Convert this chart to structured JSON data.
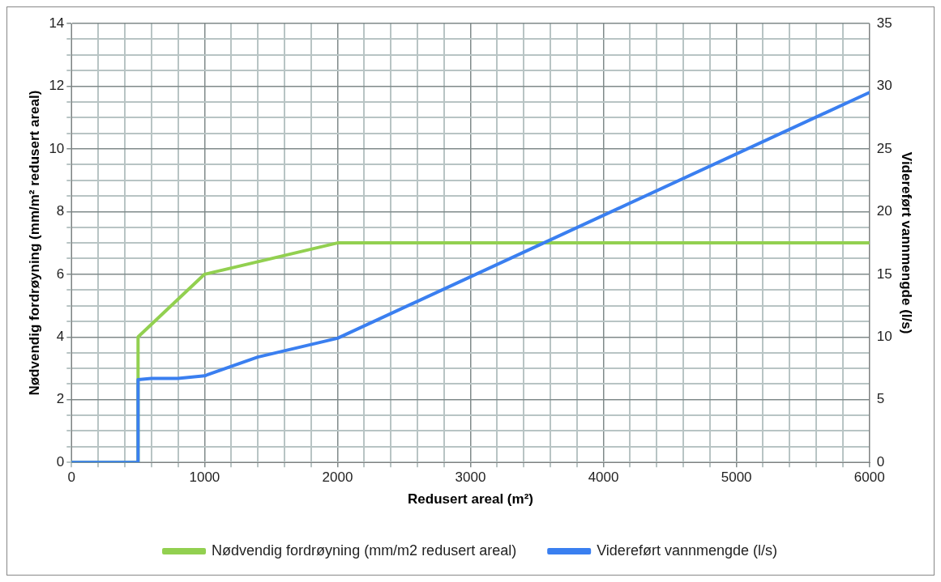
{
  "chart_data": {
    "type": "line",
    "xlabel": "Redusert areal (m²)",
    "ylabel": "Nødvendig fordrøyning (mm/m² redusert areal)",
    "y2label": "Videreført vannmengde (l/s)",
    "xlim": [
      0,
      6000
    ],
    "xticks": [
      0,
      {
        "value": 200,
        "label": null
      },
      {
        "value": 400,
        "label": null
      },
      {
        "value": 600,
        "label": null
      },
      {
        "value": 800,
        "label": null
      },
      1000,
      {
        "value": 1200,
        "label": null
      },
      {
        "value": 1400,
        "label": null
      },
      {
        "value": 1600,
        "label": null
      },
      {
        "value": 1800,
        "label": null
      },
      2000,
      {
        "value": 2200,
        "label": null
      },
      {
        "value": 2400,
        "label": null
      },
      {
        "value": 2600,
        "label": null
      },
      {
        "value": 2800,
        "label": null
      },
      3000,
      {
        "value": 3200,
        "label": null
      },
      {
        "value": 3400,
        "label": null
      },
      {
        "value": 3600,
        "label": null
      },
      {
        "value": 3800,
        "label": null
      },
      4000,
      {
        "value": 4200,
        "label": null
      },
      {
        "value": 4400,
        "label": null
      },
      {
        "value": 4600,
        "label": null
      },
      {
        "value": 4800,
        "label": null
      },
      5000,
      {
        "value": 5200,
        "label": null
      },
      {
        "value": 5400,
        "label": null
      },
      {
        "value": 5600,
        "label": null
      },
      {
        "value": 5800,
        "label": null
      },
      6000
    ],
    "ylim": [
      0,
      14
    ],
    "yticks": [
      0,
      {
        "value": 0.5,
        "label": null
      },
      {
        "value": 1,
        "label": null
      },
      {
        "value": 1.5,
        "label": null
      },
      2,
      {
        "value": 2.5,
        "label": null
      },
      {
        "value": 3,
        "label": null
      },
      {
        "value": 3.5,
        "label": null
      },
      4,
      {
        "value": 4.5,
        "label": null
      },
      {
        "value": 5,
        "label": null
      },
      {
        "value": 5.5,
        "label": null
      },
      6,
      {
        "value": 6.5,
        "label": null
      },
      {
        "value": 7,
        "label": null
      },
      {
        "value": 7.5,
        "label": null
      },
      8,
      {
        "value": 8.5,
        "label": null
      },
      {
        "value": 9,
        "label": null
      },
      {
        "value": 9.5,
        "label": null
      },
      10,
      {
        "value": 10.5,
        "label": null
      },
      {
        "value": 11,
        "label": null
      },
      {
        "value": 11.5,
        "label": null
      },
      12,
      {
        "value": 12.5,
        "label": null
      },
      {
        "value": 13,
        "label": null
      },
      {
        "value": 13.5,
        "label": null
      },
      14
    ],
    "y2lim": [
      0,
      35
    ],
    "y2ticks": [
      0,
      5,
      10,
      15,
      20,
      25,
      30,
      35
    ],
    "grid": true,
    "legend": "bottom",
    "marker": "none",
    "line_style": "solid",
    "series": [
      {
        "name": "Nødvendig fordrøyning (mm/m2 redusert areal)",
        "color": "#92d050",
        "x": [
          0,
          500,
          500,
          1000,
          2000,
          6000
        ],
        "values": [
          0,
          0,
          4,
          6,
          7,
          7
        ]
      },
      {
        "name": "Videreført vannmengde (l/s)",
        "color": "#3a7ff0",
        "axis": "y2",
        "x": [
          0,
          500,
          500,
          600,
          800,
          1000,
          1400,
          2000,
          6000
        ],
        "values": [
          0,
          0,
          6.6,
          6.7,
          6.7,
          6.9,
          8.4,
          9.9,
          29.5
        ]
      }
    ]
  }
}
